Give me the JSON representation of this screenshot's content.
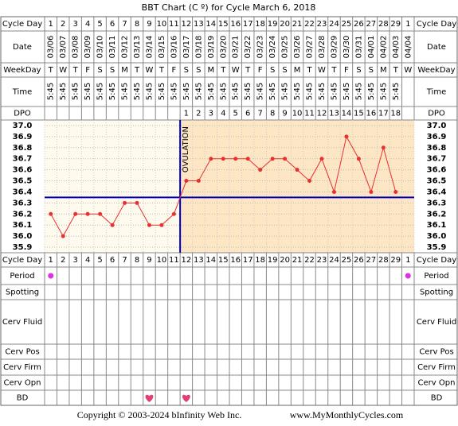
{
  "chart_data": {
    "type": "line",
    "title": "BBT Chart (C º) for Cycle March 6, 2018",
    "row_labels": [
      "Cycle Day",
      "Date",
      "WeekDay",
      "Time",
      "DPO",
      "Period",
      "Spotting",
      "Cerv Fluid",
      "Cerv Pos",
      "Cerv Firm",
      "Cerv Opn",
      "BD"
    ],
    "categories": [
      1,
      2,
      3,
      4,
      5,
      6,
      7,
      8,
      9,
      10,
      11,
      12,
      13,
      14,
      15,
      16,
      17,
      18,
      19,
      20,
      21,
      22,
      23,
      24,
      25,
      26,
      27,
      28,
      29,
      1
    ],
    "dates": [
      "03/06",
      "03/07",
      "03/08",
      "03/09",
      "03/10",
      "03/11",
      "03/12",
      "03/13",
      "03/14",
      "03/15",
      "03/16",
      "03/17",
      "03/18",
      "03/19",
      "03/20",
      "03/21",
      "03/22",
      "03/23",
      "03/24",
      "03/25",
      "03/26",
      "03/27",
      "03/28",
      "03/29",
      "03/30",
      "03/31",
      "04/01",
      "04/02",
      "04/03",
      "04/04"
    ],
    "weekdays": [
      "T",
      "W",
      "T",
      "F",
      "S",
      "S",
      "M",
      "T",
      "W",
      "T",
      "F",
      "S",
      "S",
      "M",
      "T",
      "W",
      "T",
      "F",
      "S",
      "S",
      "M",
      "T",
      "W",
      "T",
      "F",
      "S",
      "S",
      "M",
      "T",
      "W"
    ],
    "times": [
      "5:45",
      "5:45",
      "5:45",
      "5:45",
      "5:45",
      "5:45",
      "5:45",
      "5:45",
      "5:45",
      "5:45",
      "5:45",
      "5:45",
      "5:45",
      "5:45",
      "5:45",
      "5:45",
      "5:45",
      "5:45",
      "5:45",
      "5:45",
      "5:45",
      "5:45",
      "5:45",
      "5:45",
      "5:45",
      "5:45",
      "5:45",
      "5:45",
      "5:45",
      null
    ],
    "dpo": [
      null,
      null,
      null,
      null,
      null,
      null,
      null,
      null,
      null,
      null,
      null,
      1,
      2,
      3,
      4,
      5,
      6,
      7,
      8,
      9,
      10,
      11,
      12,
      13,
      14,
      15,
      16,
      17,
      18,
      null
    ],
    "values": [
      36.2,
      36.0,
      36.2,
      36.2,
      36.2,
      36.1,
      36.3,
      36.3,
      36.1,
      36.1,
      36.2,
      36.5,
      36.5,
      36.7,
      36.7,
      36.7,
      36.7,
      36.6,
      36.7,
      36.7,
      36.6,
      36.5,
      36.7,
      36.4,
      36.9,
      36.7,
      36.4,
      36.8,
      36.4,
      null
    ],
    "color": "#e83030",
    "ylim": [
      35.85,
      37.05
    ],
    "yticks": [
      {
        "value": 37.0,
        "label": "37.0"
      },
      36.9,
      36.8,
      36.7,
      36.6,
      36.5,
      36.4,
      36.3,
      36.2,
      36.1,
      {
        "value": 36.0,
        "label": "36.0"
      },
      35.9
    ],
    "grid": true,
    "coverline": 36.35,
    "ovulation_label": "OVULATION",
    "period": [
      true,
      false,
      false,
      false,
      false,
      false,
      false,
      false,
      false,
      false,
      false,
      false,
      false,
      false,
      false,
      false,
      false,
      false,
      false,
      false,
      false,
      false,
      false,
      false,
      false,
      false,
      false,
      false,
      false,
      true
    ],
    "bd": [
      false,
      false,
      false,
      false,
      false,
      false,
      false,
      false,
      true,
      false,
      false,
      true,
      false,
      false,
      false,
      false,
      false,
      false,
      false,
      false,
      false,
      false,
      false,
      false,
      false,
      false,
      false,
      false,
      false,
      false
    ],
    "copyright": "Copyright © 2003-2024 bInfinity Web Inc.",
    "website": "www.MyMonthlyCycles.com"
  }
}
